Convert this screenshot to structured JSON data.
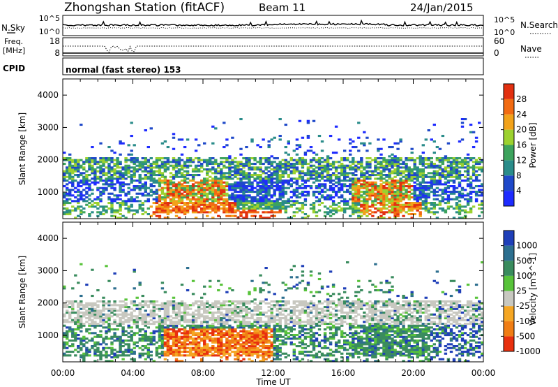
{
  "header": {
    "station": "Zhongshan Station (fitACF)",
    "beam": "Beam 11",
    "date": "24/Jan/2015"
  },
  "noise_panel": {
    "left_label": "N.Sky",
    "right_label": "N.Search",
    "yticks_left": [
      "10^5",
      "10^0"
    ],
    "yticks_right": [
      "10^5",
      "10^0"
    ]
  },
  "freq_panel": {
    "left_label_1": "Freq.",
    "left_label_2": "[MHz]",
    "right_label": "Nave",
    "yticks_left": [
      "18",
      "8"
    ],
    "yticks_right": [
      "60",
      "0"
    ]
  },
  "cpid_panel": {
    "label": "CPID",
    "text": "normal (fast stereo) 153"
  },
  "chart_data": [
    {
      "type": "heatmap",
      "parameter": "Power",
      "ylabel": "Slant Range [km]",
      "xlabel": "",
      "ylim": [
        180,
        4500
      ],
      "yticks": [
        1000,
        2000,
        3000,
        4000
      ],
      "xlim_hours": [
        0,
        24
      ],
      "colorbar": {
        "label": "Power [dB]",
        "ticks": [
          "4",
          "8",
          "12",
          "16",
          "20",
          "24",
          "28"
        ],
        "colors": [
          "#1e2bff",
          "#1f49c9",
          "#2a8c8a",
          "#3da35d",
          "#9cd12f",
          "#f2a21a",
          "#f26b12",
          "#e23010"
        ]
      }
    },
    {
      "type": "heatmap",
      "parameter": "Velocity",
      "ylabel": "Slant Range [km]",
      "xlabel": "Time UT",
      "ylim": [
        180,
        4500
      ],
      "yticks": [
        1000,
        2000,
        3000,
        4000
      ],
      "xticks": [
        "00:00",
        "04:00",
        "08:00",
        "12:00",
        "16:00",
        "20:00",
        "00:00"
      ],
      "colorbar": {
        "label": "Velocity [m s^-1]",
        "ticks": [
          "1000",
          "500",
          "100",
          "25",
          "-25",
          "-100",
          "-500",
          "-1000"
        ],
        "colors": [
          "#1f3fb8",
          "#2d6f8f",
          "#3a8c5e",
          "#58c33a",
          "#c8c8c0",
          "#f5a623",
          "#f07d14",
          "#e8300e"
        ]
      }
    }
  ]
}
